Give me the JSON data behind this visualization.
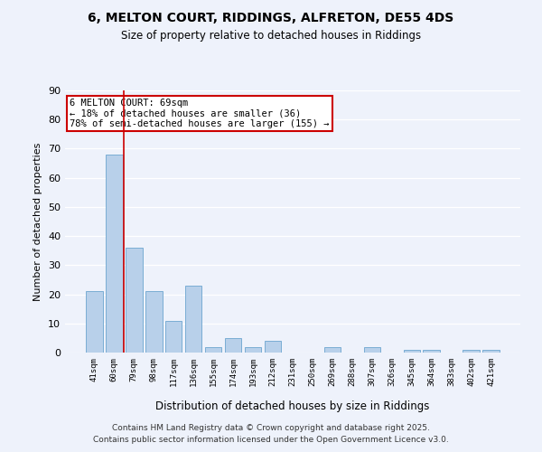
{
  "title1": "6, MELTON COURT, RIDDINGS, ALFRETON, DE55 4DS",
  "title2": "Size of property relative to detached houses in Riddings",
  "xlabel": "Distribution of detached houses by size in Riddings",
  "ylabel": "Number of detached properties",
  "categories": [
    "41sqm",
    "60sqm",
    "79sqm",
    "98sqm",
    "117sqm",
    "136sqm",
    "155sqm",
    "174sqm",
    "193sqm",
    "212sqm",
    "231sqm",
    "250sqm",
    "269sqm",
    "288sqm",
    "307sqm",
    "326sqm",
    "345sqm",
    "364sqm",
    "383sqm",
    "402sqm",
    "421sqm"
  ],
  "values": [
    21,
    68,
    36,
    21,
    11,
    23,
    2,
    5,
    2,
    4,
    0,
    0,
    2,
    0,
    2,
    0,
    1,
    1,
    0,
    1,
    1
  ],
  "bar_color": "#b8d0ea",
  "bar_edge_color": "#7aadd4",
  "background_color": "#eef2fb",
  "grid_color": "#ffffff",
  "vline_x": 1.5,
  "vline_color": "#cc0000",
  "annotation_text": "6 MELTON COURT: 69sqm\n← 18% of detached houses are smaller (36)\n78% of semi-detached houses are larger (155) →",
  "annotation_box_color": "#cc0000",
  "ylim": [
    0,
    90
  ],
  "yticks": [
    0,
    10,
    20,
    30,
    40,
    50,
    60,
    70,
    80,
    90
  ],
  "footer_line1": "Contains HM Land Registry data © Crown copyright and database right 2025.",
  "footer_line2": "Contains public sector information licensed under the Open Government Licence v3.0."
}
